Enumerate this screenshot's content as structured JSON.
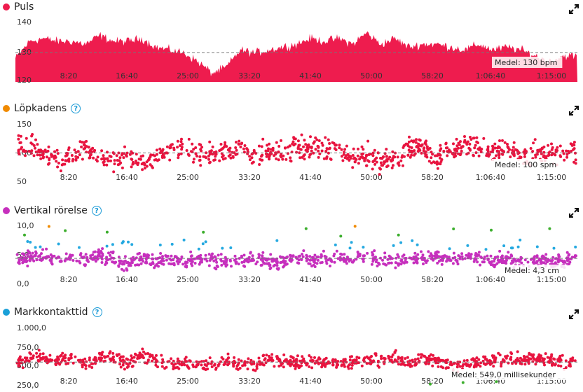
{
  "colors": {
    "puls": "#ee1c4e",
    "kadens_dot": "#f08a00",
    "kadens_points": "#e8143f",
    "vertikal_dot": "#c62fbd",
    "kontakt_dot": "#1aa0d8",
    "kontakt_points": "#e8143f",
    "blue_points": "#25a9e0",
    "green_points": "#3cae2d",
    "orange_points": "#f08a00"
  },
  "x_tick_labels": [
    "8:20",
    "16:40",
    "25:00",
    "33:20",
    "41:40",
    "50:00",
    "58:20",
    "1:06:40",
    "1:15:00"
  ],
  "panels": {
    "puls": {
      "title": "Puls",
      "help": false,
      "avg_label": "Medel: 130 bpm",
      "y_ticks": [
        "140",
        "130",
        "120"
      ]
    },
    "kadens": {
      "title": "Löpkadens",
      "help": true,
      "avg_label": "Medel: 100 spm",
      "y_ticks": [
        "150",
        "100",
        "50"
      ]
    },
    "vertikal": {
      "title": "Vertikal rörelse",
      "help": true,
      "avg_label": "Medel: 4,3 cm",
      "y_ticks": [
        "10,0",
        "5,0",
        "0,0"
      ]
    },
    "kontakt": {
      "title": "Markkontakttid",
      "help": true,
      "avg_label": "Medel: 549,0 millisekunder",
      "y_ticks": [
        "1.000,0",
        "750,0",
        "500,0",
        "250,0"
      ]
    }
  },
  "chart_data": [
    {
      "type": "area",
      "title": "Puls",
      "ylabel": "bpm",
      "x_domain_minutes": [
        0,
        80
      ],
      "ylim": [
        120,
        140
      ],
      "mean": 130,
      "grid": false,
      "series": [
        {
          "x": [
            0,
            2,
            4,
            6,
            8,
            10,
            12,
            14,
            16,
            18,
            20,
            22,
            24,
            26,
            28,
            30,
            32,
            34,
            36,
            38,
            40,
            42,
            44,
            46,
            48,
            50,
            52,
            54,
            56,
            58,
            60,
            62,
            64,
            66,
            68,
            70,
            72,
            74,
            76,
            78,
            80
          ],
          "values": [
            128,
            134,
            135,
            134,
            134,
            133,
            136,
            134,
            134,
            135,
            132,
            131,
            130,
            127,
            123,
            125,
            131,
            130,
            131,
            132,
            133,
            135,
            134,
            135,
            133,
            137,
            133,
            135,
            132,
            133,
            133,
            132,
            131,
            133,
            131,
            132,
            131,
            129,
            127,
            129,
            129
          ]
        }
      ]
    },
    {
      "type": "scatter",
      "title": "Löpkadens",
      "ylabel": "spm",
      "ylim": [
        50,
        150
      ],
      "mean": 100,
      "grid": false,
      "series": [
        {
          "x": [
            0,
            2,
            4,
            6,
            8,
            10,
            12,
            14,
            16,
            18,
            20,
            22,
            24,
            26,
            28,
            30,
            32,
            34,
            36,
            38,
            40,
            42,
            44,
            46,
            48,
            50,
            52,
            54,
            56,
            58,
            60,
            62,
            64,
            66,
            68,
            70,
            72,
            74,
            76,
            78,
            80
          ],
          "values": [
            108,
            113,
            98,
            85,
            94,
            110,
            89,
            82,
            95,
            86,
            92,
            105,
            100,
            103,
            96,
            108,
            105,
            100,
            103,
            98,
            112,
            110,
            107,
            105,
            90,
            100,
            82,
            90,
            104,
            108,
            88,
            110,
            112,
            108,
            103,
            106,
            97,
            104,
            97,
            101,
            102
          ]
        }
      ]
    },
    {
      "type": "scatter",
      "title": "Vertikal rörelse",
      "ylabel": "cm",
      "ylim": [
        0,
        10
      ],
      "mean": 4.3,
      "grid": false,
      "series": [
        {
          "x": [
            0,
            2,
            4,
            6,
            8,
            10,
            12,
            14,
            16,
            18,
            20,
            22,
            24,
            26,
            28,
            30,
            32,
            34,
            36,
            38,
            40,
            42,
            44,
            46,
            48,
            50,
            52,
            54,
            56,
            58,
            60,
            62,
            64,
            66,
            68,
            70,
            72,
            74,
            76,
            78,
            80
          ],
          "values": [
            3.8,
            4.5,
            4.6,
            4.2,
            4.6,
            3.9,
            4.8,
            4.1,
            3.2,
            4.4,
            3.9,
            4.2,
            3.6,
            4.3,
            4.1,
            3.7,
            3.9,
            4.5,
            3.8,
            3.6,
            4.7,
            4.1,
            4.3,
            4.2,
            4.4,
            4.6,
            4.0,
            3.9,
            4.4,
            4.3,
            4.6,
            4.1,
            4.8,
            4.5,
            3.7,
            4.4,
            3.3,
            4.0,
            3.6,
            3.9,
            4.2
          ]
        }
      ]
    },
    {
      "type": "scatter",
      "title": "Markkontakttid",
      "ylabel": "millisekunder",
      "ylim": [
        250,
        1000
      ],
      "mean": 549.0,
      "grid": false,
      "series": [
        {
          "x": [
            0,
            2,
            4,
            6,
            8,
            10,
            12,
            14,
            16,
            18,
            20,
            22,
            24,
            26,
            28,
            30,
            32,
            34,
            36,
            38,
            40,
            42,
            44,
            46,
            48,
            50,
            52,
            54,
            56,
            58,
            60,
            62,
            64,
            66,
            68,
            70,
            72,
            74,
            76,
            78,
            80
          ],
          "values": [
            540,
            590,
            600,
            560,
            620,
            540,
            610,
            630,
            520,
            640,
            560,
            520,
            560,
            510,
            520,
            560,
            540,
            520,
            600,
            560,
            540,
            550,
            560,
            520,
            560,
            580,
            560,
            620,
            520,
            600,
            560,
            520,
            520,
            560,
            560,
            620,
            580,
            600,
            580,
            540,
            560
          ]
        }
      ]
    }
  ]
}
